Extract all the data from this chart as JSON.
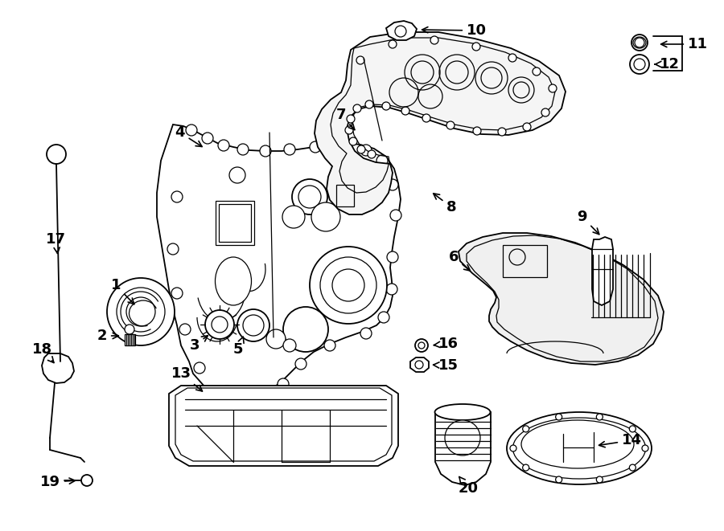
{
  "background_color": "#ffffff",
  "line_color": "#000000",
  "fig_width": 9.0,
  "fig_height": 6.61,
  "dpi": 100,
  "arrow_color": "#000000",
  "font_size": 13
}
